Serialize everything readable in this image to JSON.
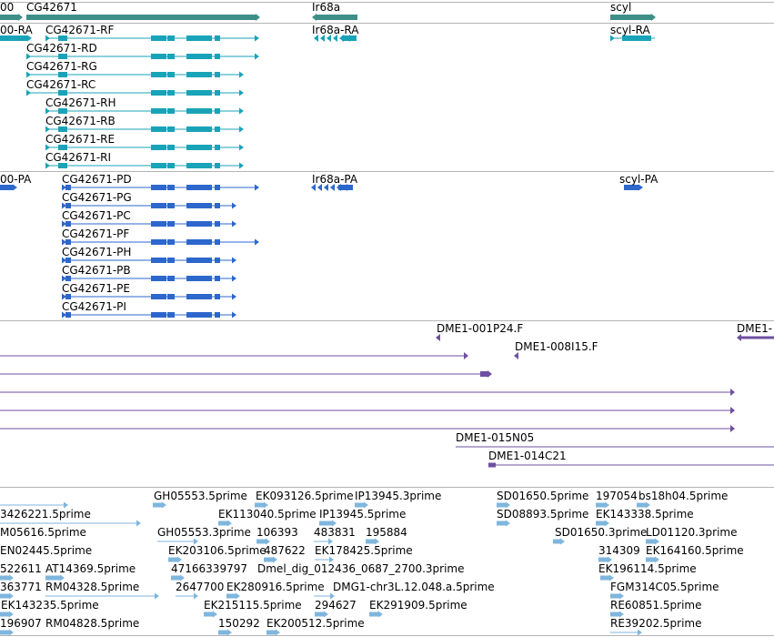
{
  "colors": {
    "gene": "#3d8f87",
    "transcript": "#19a3b8",
    "protein": "#2d67cc",
    "clone": "#6f4fa0",
    "est": "#7fb6dd",
    "divider": "#b4b4b4"
  },
  "tracks": {
    "genes": {
      "labels": [
        "00",
        "CG42671",
        "Ir68a",
        "scyl"
      ]
    },
    "transcripts": {
      "labels": [
        "00-RA",
        "CG42671-RF",
        "Ir68a-RA",
        "scyl-RA",
        "CG42671-RD",
        "CG42671-RG",
        "CG42671-RC",
        "CG42671-RH",
        "CG42671-RB",
        "CG42671-RE",
        "CG42671-RI"
      ]
    },
    "proteins": {
      "labels": [
        "00-PA",
        "CG42671-PD",
        "Ir68a-PA",
        "scyl-PA",
        "CG42671-PG",
        "CG42671-PC",
        "CG42671-PF",
        "CG42671-PH",
        "CG42671-PB",
        "CG42671-PE",
        "CG42671-PI"
      ]
    },
    "clones": {
      "labels": [
        "DME1-001P24.F",
        "DME1-",
        "DME1-008I15.F",
        "DME1-015N05",
        "DME1-014C21"
      ]
    },
    "ests": {
      "labels": [
        "GH05553.5prime",
        "EK093126.5prime",
        "IP13945.3prime",
        "SD01650.5prime",
        "197054",
        "bs18h04.5prime",
        "3426221.5prime",
        "EK113040.5prime",
        "IP13945.5prime",
        "SD08893.5prime",
        "EK143338.5prime",
        "M05616.5prime",
        "GH05553.3prime",
        "106393",
        "483831",
        "195884",
        "SD01650.3prime",
        "LD01120.3prime",
        "EN02445.5prime",
        "EK203106.5prime",
        "487622",
        "EK178425.5prime",
        "314309",
        "EK164160.5prime",
        "522611",
        "AT14369.5prime",
        "47166339797",
        "Dmel_dig_012436_0687_2700.3prime",
        "EK196114.5prime",
        "363771",
        "RM04328.5prime",
        "2647700",
        "EK280916.5prime",
        "DMG1-chr3L.12.048.a.5prime",
        "FGM314C05.5prime",
        "EK143235.5prime",
        "EK215115.5prime",
        "294627",
        "EK291909.5prime",
        "RE60851.5prime",
        "196907",
        "RM04828.5prime",
        "150292",
        "EK200512.5prime",
        "RE39202.5prime"
      ]
    }
  }
}
